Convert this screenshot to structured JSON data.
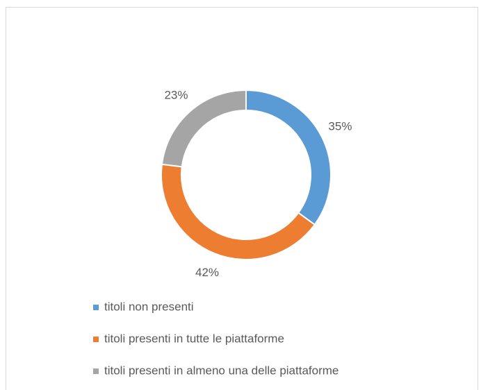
{
  "chart_data": {
    "type": "donut",
    "categories": [
      "titoli non presenti",
      "titoli presenti in tutte le piattaforme",
      "titoli presenti in almeno una delle piattaforme"
    ],
    "values": [
      35,
      42,
      23
    ],
    "value_labels": [
      "35%",
      "42%",
      "23%"
    ],
    "colors": [
      "#5b9bd5",
      "#ed7d31",
      "#a5a5a5"
    ],
    "legend": "bottom"
  }
}
